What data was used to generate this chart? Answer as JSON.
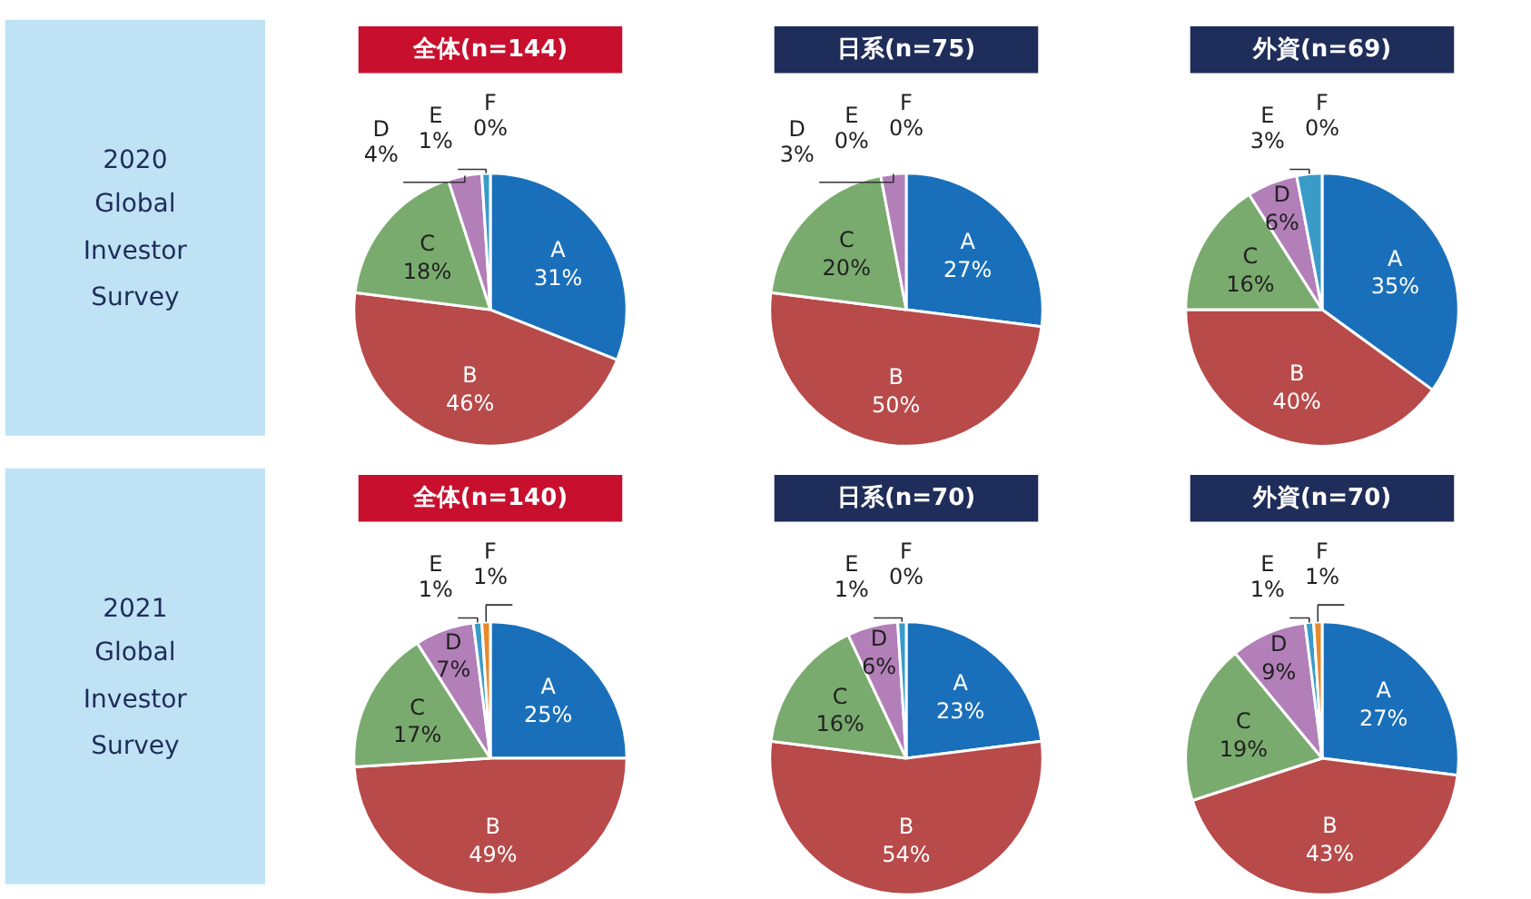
{
  "chart_data": [
    {
      "type": "other",
      "annotations": [
        "2020",
        "Global",
        "Investor",
        "Survey"
      ]
    },
    {
      "type": "pie",
      "title": "全体(n=144)",
      "categories": [
        "A",
        "B",
        "C",
        "D",
        "E",
        "F"
      ],
      "values": [
        31,
        46,
        18,
        4,
        1,
        0
      ],
      "value_labels": [
        "31%",
        "46%",
        "18%",
        "4%",
        "1%",
        "0%"
      ],
      "colors": [
        "#1a6fba",
        "#b84a4a",
        "#7aab6e",
        "#b27fb8",
        "#3a9bc9",
        "#e8892b"
      ]
    },
    {
      "type": "pie",
      "title": "日系(n=75)",
      "categories": [
        "A",
        "B",
        "C",
        "D",
        "E",
        "F"
      ],
      "values": [
        27,
        50,
        20,
        3,
        0,
        0
      ],
      "value_labels": [
        "27%",
        "50%",
        "20%",
        "3%",
        "0%",
        "0%"
      ],
      "colors": [
        "#1a6fba",
        "#b84a4a",
        "#7aab6e",
        "#b27fb8",
        "#3a9bc9",
        "#e8892b"
      ]
    },
    {
      "type": "pie",
      "title": "外資(n=69)",
      "categories": [
        "A",
        "B",
        "C",
        "D",
        "E",
        "F"
      ],
      "values": [
        35,
        40,
        16,
        6,
        3,
        0
      ],
      "value_labels": [
        "35%",
        "40%",
        "16%",
        "6%",
        "3%",
        "0%"
      ],
      "colors": [
        "#1a6fba",
        "#b84a4a",
        "#7aab6e",
        "#b27fb8",
        "#3a9bc9",
        "#e8892b"
      ]
    },
    {
      "type": "other",
      "annotations": [
        "2021",
        "Global",
        "Investor",
        "Survey"
      ]
    },
    {
      "type": "pie",
      "title": "全体(n=140)",
      "categories": [
        "A",
        "B",
        "C",
        "D",
        "E",
        "F"
      ],
      "values": [
        25,
        49,
        17,
        7,
        1,
        1
      ],
      "value_labels": [
        "25%",
        "49%",
        "17%",
        "7%",
        "1%",
        "1%"
      ],
      "colors": [
        "#1a6fba",
        "#b84a4a",
        "#7aab6e",
        "#b27fb8",
        "#3a9bc9",
        "#e8892b"
      ]
    },
    {
      "type": "pie",
      "title": "日系(n=70)",
      "categories": [
        "A",
        "B",
        "C",
        "D",
        "E",
        "F"
      ],
      "values": [
        23,
        54,
        16,
        6,
        1,
        0
      ],
      "value_labels": [
        "23%",
        "54%",
        "16%",
        "6%",
        "1%",
        "0%"
      ],
      "colors": [
        "#1a6fba",
        "#b84a4a",
        "#7aab6e",
        "#b27fb8",
        "#3a9bc9",
        "#e8892b"
      ]
    },
    {
      "type": "pie",
      "title": "外資(n=70)",
      "categories": [
        "A",
        "B",
        "C",
        "D",
        "E",
        "F"
      ],
      "values": [
        27,
        43,
        19,
        9,
        1,
        1
      ],
      "value_labels": [
        "27%",
        "43%",
        "19%",
        "9%",
        "1%",
        "1%"
      ],
      "colors": [
        "#1a6fba",
        "#b84a4a",
        "#7aab6e",
        "#b27fb8",
        "#3a9bc9",
        "#e8892b"
      ]
    }
  ]
}
